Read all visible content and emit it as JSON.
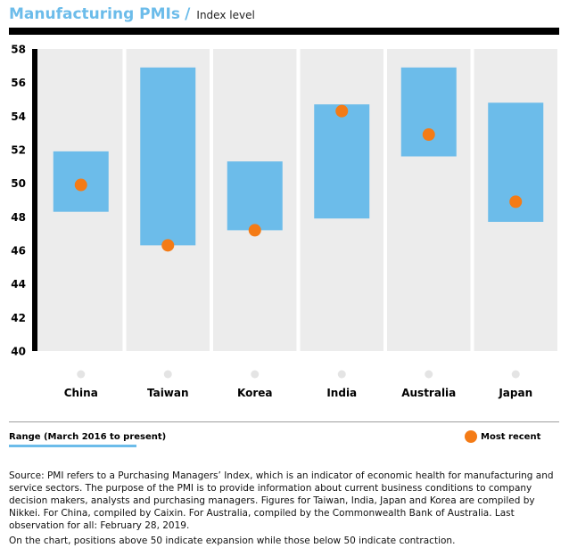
{
  "header": {
    "title": "Manufacturing PMIs",
    "separator": "/",
    "subtitle": "Index level"
  },
  "colors": {
    "range": "#6cbcea",
    "marker": "#f47b16",
    "panel": "#ececec",
    "axis": "#000000"
  },
  "chart_data": {
    "type": "range-dot",
    "title": "Manufacturing PMIs",
    "ylabel": "Index level",
    "ylim": [
      40,
      58
    ],
    "yticks": [
      40,
      42,
      44,
      46,
      48,
      50,
      52,
      54,
      56,
      58
    ],
    "categories": [
      "China",
      "Taiwan",
      "Korea",
      "India",
      "Australia",
      "Japan"
    ],
    "series": [
      {
        "name": "Range (March 2016 to present)",
        "low": [
          48.3,
          46.3,
          47.2,
          47.9,
          51.6,
          47.7
        ],
        "high": [
          51.9,
          56.9,
          51.3,
          54.7,
          56.9,
          54.8
        ]
      },
      {
        "name": "Most recent",
        "values": [
          49.9,
          46.3,
          47.2,
          54.3,
          52.9,
          48.9
        ]
      }
    ],
    "legend": [
      "Range (March 2016 to present)",
      "Most recent"
    ]
  },
  "legend": {
    "range_label": "Range (March 2016 to present)",
    "recent_label": "Most recent"
  },
  "notes": [
    "Source: PMI refers to a Purchasing Managers’ Index, which is an indicator of economic health for manufacturing and service sectors. The purpose of the PMI is to provide information about current business conditions to company decision makers, analysts and purchasing managers. Figures for Taiwan, India, Japan and Korea are compiled by Nikkei. For China, compiled by Caixin. For Australia, compiled by the Commonwealth Bank of Australia. Last observation for all: February 28, 2019.",
    "On the chart, positions above 50 indicate expansion while those below 50 indicate contraction."
  ]
}
